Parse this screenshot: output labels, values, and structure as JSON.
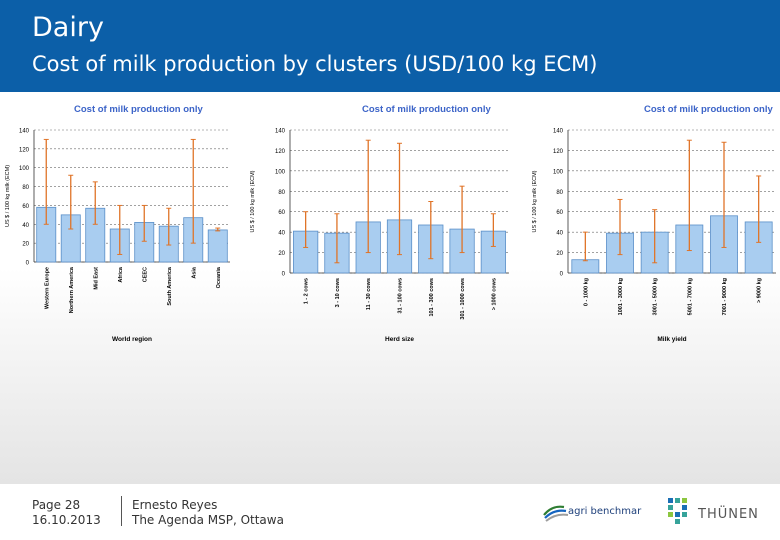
{
  "header": {
    "title": "Dairy",
    "subtitle": "Cost of milk production by clusters (USD/100 kg ECM)"
  },
  "footer": {
    "page_label": "Page 28",
    "date": "16.10.2013",
    "author": "Ernesto Reyes",
    "event": "The Agenda MSP, Ottawa",
    "logo_left_text": "agri benchmark",
    "logo_right_text": "THÜNEN"
  },
  "colors": {
    "header_bg": "#0c5fa8",
    "bar_fill": "#a9cdf0",
    "bar_stroke": "#5a8fc8",
    "error_bar": "#e07428",
    "chart_title": "#3c64c8"
  },
  "chart_data": [
    {
      "type": "bar",
      "title": "Cost of milk production only",
      "xlabel": "World region",
      "ylabel": "US $ / 100 kg milk (ECM)",
      "ylim": [
        0,
        140
      ],
      "yticks": [
        0,
        20,
        40,
        60,
        80,
        100,
        120,
        140
      ],
      "grid": true,
      "categories": [
        "Western Europe",
        "Northern America",
        "Mid East",
        "Africa",
        "CEEC",
        "South America",
        "Asia",
        "Oceania"
      ],
      "values": [
        58,
        50,
        57,
        35,
        42,
        38,
        47,
        34
      ],
      "error_min": [
        40,
        35,
        40,
        8,
        22,
        18,
        20,
        33
      ],
      "error_max": [
        130,
        92,
        85,
        60,
        60,
        57,
        130,
        36
      ]
    },
    {
      "type": "bar",
      "title": "Cost of milk production only",
      "xlabel": "Herd size",
      "ylabel": "US $ / 100 kg milk (ECM)",
      "ylim": [
        0,
        140
      ],
      "yticks": [
        0,
        20,
        40,
        60,
        80,
        100,
        120,
        140
      ],
      "grid": true,
      "categories": [
        "1 - 2 cows",
        "3 - 10 cows",
        "11 - 30 cows",
        "31 - 100 cows",
        "101 - 300 cows",
        "301 - 1000 cows",
        "> 1000 cows"
      ],
      "values": [
        41,
        39,
        50,
        52,
        47,
        43,
        41
      ],
      "error_min": [
        25,
        10,
        20,
        18,
        14,
        20,
        26
      ],
      "error_max": [
        60,
        58,
        130,
        127,
        70,
        85,
        58
      ]
    },
    {
      "type": "bar",
      "title": "Cost of milk production only",
      "xlabel": "Milk yield",
      "ylabel": "US $ / 100 kg milk (ECM)",
      "ylim": [
        0,
        140
      ],
      "yticks": [
        0,
        20,
        40,
        60,
        80,
        100,
        120,
        140
      ],
      "grid": true,
      "categories": [
        "0 - 1000 kg",
        "1001 - 3000 kg",
        "3001 - 5000 kg",
        "5001 - 7000 kg",
        "7001 - 9000 kg",
        "> 9000 kg"
      ],
      "values": [
        13,
        39,
        40,
        47,
        56,
        50
      ],
      "error_min": [
        12,
        18,
        10,
        22,
        25,
        30
      ],
      "error_max": [
        40,
        72,
        62,
        130,
        128,
        95
      ]
    }
  ]
}
